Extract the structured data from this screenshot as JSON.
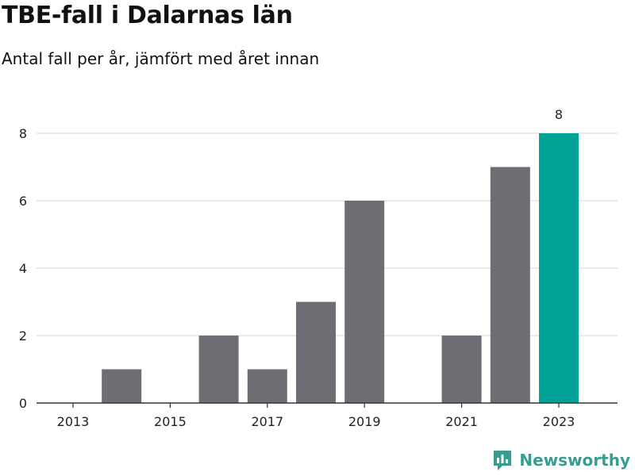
{
  "header": {
    "title": "TBE-fall i Dalarnas län",
    "subtitle": "Antal fall per år, jämfört med året innan"
  },
  "brand": {
    "name": "Newsworthy",
    "color": "#3a9b92"
  },
  "colors": {
    "bar_default": "#6e6d73",
    "bar_highlight": "#00a396",
    "gridline": "#dddddd",
    "axis": "#333333"
  },
  "chart_data": {
    "type": "bar",
    "x": [
      2013,
      2014,
      2015,
      2016,
      2017,
      2018,
      2019,
      2020,
      2021,
      2022,
      2023
    ],
    "values": [
      0,
      1,
      0,
      2,
      1,
      3,
      6,
      0,
      2,
      7,
      8
    ],
    "highlight": 2023,
    "data_labels": [
      {
        "x": 2023,
        "text": "8"
      }
    ],
    "x_tick_labels": [
      "2013",
      "2015",
      "2017",
      "2019",
      "2021",
      "2023"
    ],
    "y_tick_labels": [
      "0",
      "2",
      "4",
      "6",
      "8"
    ],
    "ylim": [
      0,
      8
    ],
    "title": "TBE-fall i Dalarnas län",
    "subtitle": "Antal fall per år, jämfört med året innan",
    "grid": true,
    "legend": "none"
  }
}
